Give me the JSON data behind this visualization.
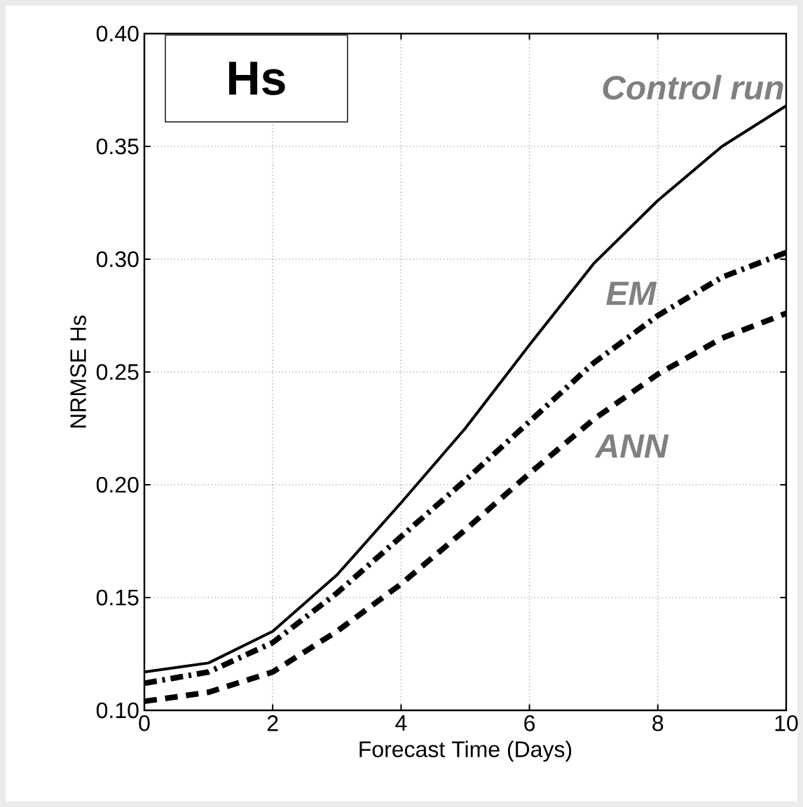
{
  "chart_data": {
    "type": "line",
    "title": "Hs",
    "xlabel": "Forecast Time (Days)",
    "ylabel": "NRMSE Hs",
    "x": [
      0,
      1,
      2,
      3,
      4,
      5,
      6,
      7,
      8,
      9,
      10
    ],
    "series": [
      {
        "name": "Control run",
        "color": "#000000",
        "line_style": "solid",
        "values": [
          0.117,
          0.121,
          0.135,
          0.16,
          0.192,
          0.225,
          0.262,
          0.298,
          0.326,
          0.35,
          0.368
        ]
      },
      {
        "name": "EM",
        "color": "#000000",
        "line_style": "dashdot",
        "values": [
          0.112,
          0.117,
          0.13,
          0.152,
          0.177,
          0.202,
          0.228,
          0.254,
          0.275,
          0.292,
          0.303
        ]
      },
      {
        "name": "ANN",
        "color": "#000000",
        "line_style": "dashed",
        "values": [
          0.104,
          0.108,
          0.117,
          0.135,
          0.156,
          0.18,
          0.205,
          0.229,
          0.249,
          0.265,
          0.276
        ]
      }
    ],
    "xlim": [
      0,
      10
    ],
    "ylim": [
      0.1,
      0.4
    ],
    "xticks": [
      0,
      2,
      4,
      6,
      8,
      10
    ],
    "yticks": [
      {
        "value": 0.1,
        "label": "0.10"
      },
      {
        "value": 0.15,
        "label": "0.15"
      },
      {
        "value": 0.2,
        "label": "0.20"
      },
      {
        "value": 0.25,
        "label": "0.25"
      },
      {
        "value": 0.3,
        "label": "0.30"
      },
      {
        "value": 0.35,
        "label": "0.35"
      },
      {
        "value": 0.4,
        "label": "0.40"
      }
    ],
    "grid": true,
    "marker": "none"
  }
}
